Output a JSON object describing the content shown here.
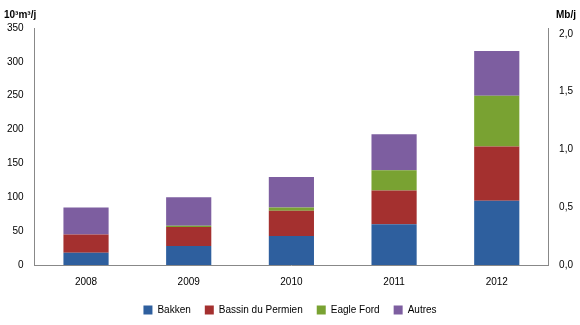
{
  "chart_data": {
    "type": "bar",
    "stacked": true,
    "ylabel": "10³m³/j",
    "y2label": "Mb/j",
    "categories": [
      "2008",
      "2009",
      "2010",
      "2011",
      "2012"
    ],
    "series": [
      {
        "name": "Bakken",
        "color": "#2e5f9e",
        "values": [
          18,
          28,
          43,
          60,
          95
        ]
      },
      {
        "name": "Bassin du Permien",
        "color": "#a4302f",
        "values": [
          27,
          28,
          37,
          50,
          80
        ]
      },
      {
        "name": "Eagle Ford",
        "color": "#79a232",
        "values": [
          0,
          2,
          5,
          30,
          75
        ]
      },
      {
        "name": "Autres",
        "color": "#7d5ea0",
        "values": [
          40,
          42,
          45,
          53,
          66
        ]
      }
    ],
    "ylim": [
      0,
      350
    ],
    "yticks": [
      0,
      50,
      100,
      150,
      200,
      250,
      300,
      350
    ],
    "y2lim": [
      0,
      2.05
    ],
    "y2ticks": [
      {
        "value": 0,
        "label": "0,0"
      },
      {
        "value": 0.5,
        "label": "0,5"
      },
      {
        "value": 1,
        "label": "1,0"
      },
      {
        "value": 1.5,
        "label": "1,5"
      },
      {
        "value": 2,
        "label": "2,0"
      }
    ],
    "grid": false,
    "legend": "bottom"
  }
}
